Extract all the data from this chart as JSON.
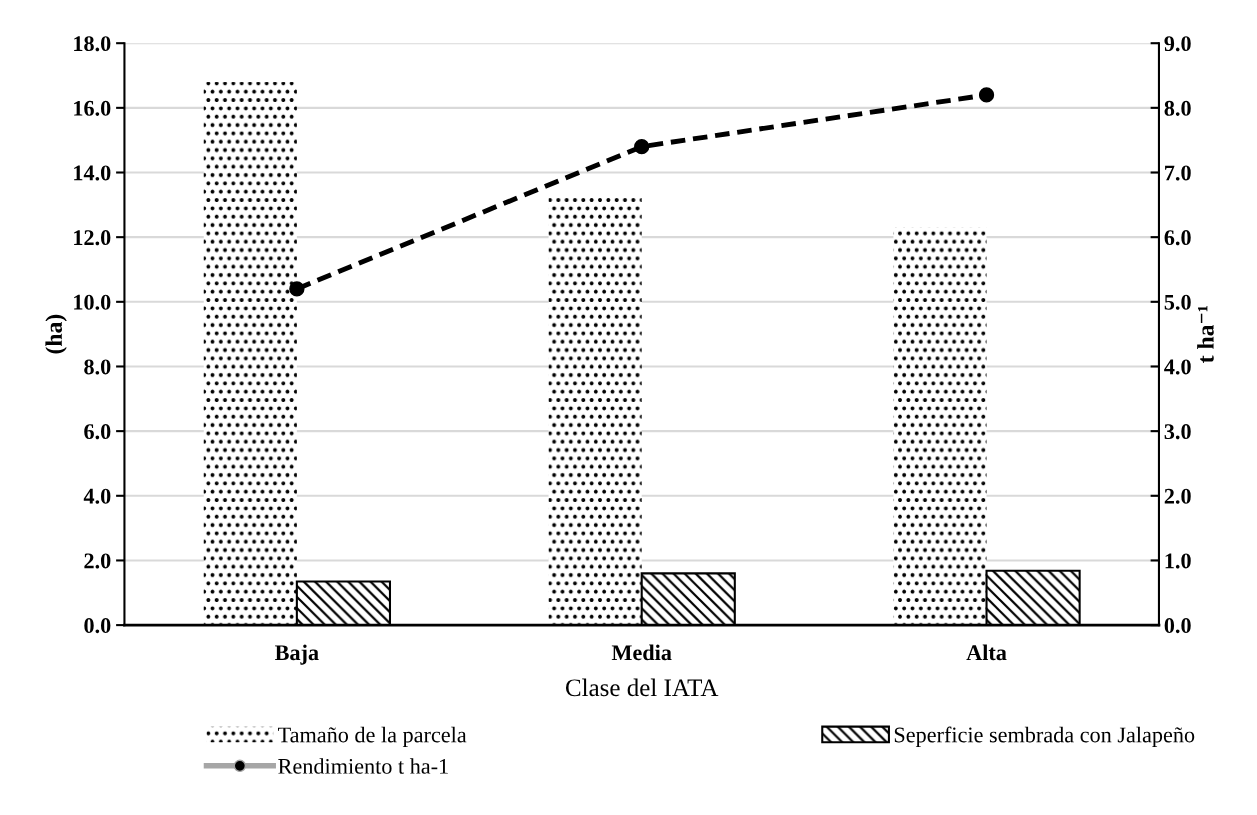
{
  "chart_data": {
    "type": "bar",
    "xlabel": "Clase del IATA",
    "ylabel": "(ha)",
    "y2label": "t ha⁻¹",
    "categories": [
      "Baja",
      "Media",
      "Alta"
    ],
    "series": [
      {
        "name": "Tamaño de la parcela",
        "color": "#000000",
        "values": [
          16.8,
          13.3,
          12.3
        ]
      },
      {
        "name": "Seperficie sembrada con Jalapeño",
        "color": "#000000",
        "values": [
          1.35,
          1.6,
          1.68
        ]
      },
      {
        "name": "Rendimiento t ha-1",
        "type": "line",
        "axis": "y2",
        "color": "#000000",
        "values": [
          5.2,
          7.4,
          8.2
        ],
        "marker": "circle",
        "line_style": "dashed"
      }
    ],
    "ylim": [
      0,
      18
    ],
    "yticks": [
      {
        "value": 0,
        "label": "0.0"
      },
      {
        "value": 2,
        "label": "2.0"
      },
      {
        "value": 4,
        "label": "4.0"
      },
      {
        "value": 6,
        "label": "6.0"
      },
      {
        "value": 8,
        "label": "8.0"
      },
      {
        "value": 10,
        "label": "10.0"
      },
      {
        "value": 12,
        "label": "12.0"
      },
      {
        "value": 14,
        "label": "14.0"
      },
      {
        "value": 16,
        "label": "16.0"
      },
      {
        "value": 18,
        "label": "18.0"
      }
    ],
    "y2lim": [
      0,
      9
    ],
    "y2ticks": [
      {
        "value": 0,
        "label": "0.0"
      },
      {
        "value": 1,
        "label": "1.0"
      },
      {
        "value": 2,
        "label": "2.0"
      },
      {
        "value": 3,
        "label": "3.0"
      },
      {
        "value": 4,
        "label": "4.0"
      },
      {
        "value": 5,
        "label": "5.0"
      },
      {
        "value": 6,
        "label": "6.0"
      },
      {
        "value": 7,
        "label": "7.0"
      },
      {
        "value": 8,
        "label": "8.0"
      },
      {
        "value": 9,
        "label": "9.0"
      }
    ],
    "grid": "y",
    "legend": "bottom"
  }
}
